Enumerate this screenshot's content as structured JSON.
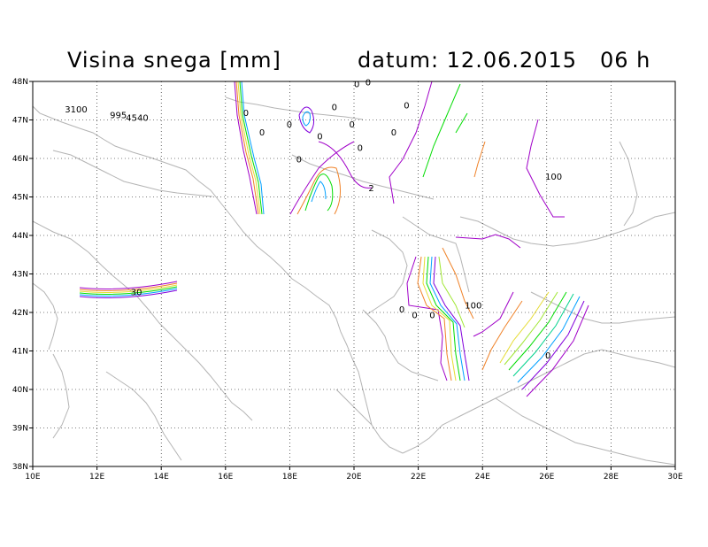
{
  "header": {
    "title": "Visina snega [mm]",
    "date_label": "datum: 12.06.2015",
    "hour_label": "06 h"
  },
  "map": {
    "lon_range": [
      10,
      30
    ],
    "lat_range": [
      38,
      48
    ],
    "x_ticks": [
      "10E",
      "12E",
      "14E",
      "16E",
      "18E",
      "20E",
      "22E",
      "24E",
      "26E",
      "28E",
      "30E"
    ],
    "y_ticks": [
      "38N",
      "39N",
      "40N",
      "41N",
      "42N",
      "43N",
      "44N",
      "45N",
      "46N",
      "47N",
      "48N"
    ],
    "grid": true,
    "contour_labels": [
      {
        "text": "3100",
        "lon": 11.0,
        "lat": 47.2
      },
      {
        "text": "995",
        "lon": 12.4,
        "lat": 47.05
      },
      {
        "text": "4540",
        "lon": 12.9,
        "lat": 46.98
      },
      {
        "text": "30",
        "lon": 13.05,
        "lat": 42.45
      },
      {
        "text": "0",
        "lon": 20.0,
        "lat": 47.85
      },
      {
        "text": "0",
        "lon": 20.35,
        "lat": 47.9
      },
      {
        "text": "0",
        "lon": 21.55,
        "lat": 47.3
      },
      {
        "text": "0",
        "lon": 19.3,
        "lat": 47.25
      },
      {
        "text": "0",
        "lon": 16.55,
        "lat": 47.1
      },
      {
        "text": "0",
        "lon": 17.9,
        "lat": 46.8
      },
      {
        "text": "0",
        "lon": 19.85,
        "lat": 46.8
      },
      {
        "text": "0",
        "lon": 17.05,
        "lat": 46.6
      },
      {
        "text": "0",
        "lon": 18.85,
        "lat": 46.5
      },
      {
        "text": "0",
        "lon": 21.15,
        "lat": 46.6
      },
      {
        "text": "0",
        "lon": 20.1,
        "lat": 46.2
      },
      {
        "text": "0",
        "lon": 18.2,
        "lat": 45.9
      },
      {
        "text": "2",
        "lon": 20.45,
        "lat": 45.15
      },
      {
        "text": "100",
        "lon": 25.95,
        "lat": 45.45
      },
      {
        "text": "0",
        "lon": 21.4,
        "lat": 42.0
      },
      {
        "text": "0",
        "lon": 21.8,
        "lat": 41.85
      },
      {
        "text": "0",
        "lon": 22.35,
        "lat": 41.85
      },
      {
        "text": "100",
        "lon": 23.45,
        "lat": 42.1
      },
      {
        "text": "0",
        "lon": 25.95,
        "lat": 40.8
      }
    ]
  },
  "colors": {
    "coast": "#b4b4b4",
    "grid": "#000000",
    "contour_palette": [
      "#a000c8",
      "#f08228",
      "#e6dc32",
      "#a0e632",
      "#00dc00",
      "#00d28c",
      "#00a0ff",
      "#8200dc"
    ]
  }
}
